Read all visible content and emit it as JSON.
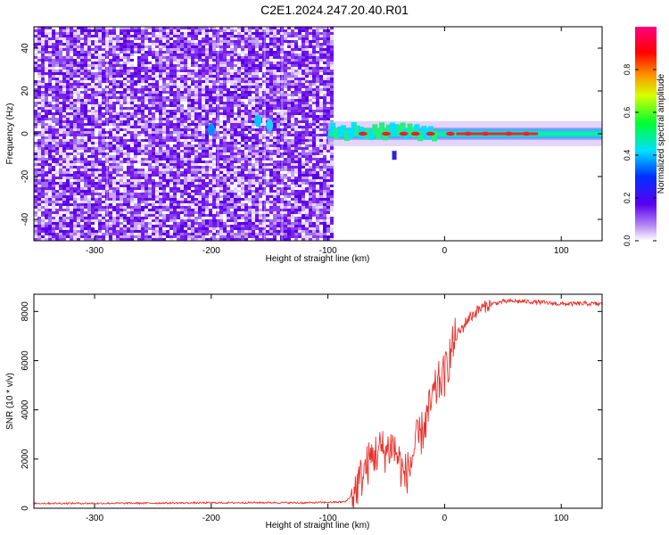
{
  "title": "C2E1.2024.247.20.40.R01",
  "colors": {
    "snr_line": "#e8322e",
    "scatter_purple": "#6a00e8",
    "axis": "#000000"
  },
  "chart_data": [
    {
      "type": "heatmap",
      "title": "C2E1.2024.247.20.40.R01",
      "xlabel": "Height of straight line (km)",
      "ylabel": "Frequency (Hz)",
      "xlim": [
        -352,
        135
      ],
      "ylim": [
        -50,
        50
      ],
      "xticks": [
        -300,
        -200,
        -100,
        0,
        100
      ],
      "yticks": [
        -40,
        -20,
        0,
        20,
        40
      ],
      "noise_region_x": [
        -352,
        -97
      ],
      "signal_center_freq_hz": 0,
      "colorbar": {
        "label": "Normalized spectral amplitude",
        "range": [
          0,
          1
        ],
        "ticks": [
          0.0,
          0.2,
          0.4,
          0.6,
          0.8
        ],
        "colormap": "rainbow (white-violet-blue-cyan-green-yellow-red-magenta)"
      },
      "grid": false
    },
    {
      "type": "line",
      "xlabel": "Height of straight line (km)",
      "ylabel": "SNR (10 * v/v)",
      "xlim": [
        -352,
        135
      ],
      "ylim": [
        0,
        8700
      ],
      "xticks": [
        -300,
        -200,
        -100,
        0,
        100
      ],
      "yticks": [
        0,
        2000,
        4000,
        6000,
        8000
      ],
      "series": [
        {
          "x": [
            -352,
            -300,
            -250,
            -200,
            -150,
            -120,
            -100,
            -85,
            -78,
            -72,
            -68,
            -62,
            -55,
            -50,
            -45,
            -40,
            -35,
            -30,
            -25,
            -20,
            -15,
            -10,
            -5,
            0,
            5,
            10,
            15,
            20,
            25,
            30,
            35,
            40,
            50,
            60,
            80,
            100,
            120,
            135
          ],
          "y": [
            200,
            200,
            210,
            220,
            230,
            220,
            240,
            260,
            600,
            1200,
            1600,
            2100,
            2400,
            2300,
            2600,
            2100,
            1300,
            1600,
            2600,
            3000,
            3700,
            4500,
            5100,
            5400,
            6300,
            7000,
            7300,
            7700,
            7900,
            8100,
            8200,
            8300,
            8400,
            8420,
            8380,
            8300,
            8320,
            8300
          ]
        }
      ],
      "grid": false
    }
  ]
}
